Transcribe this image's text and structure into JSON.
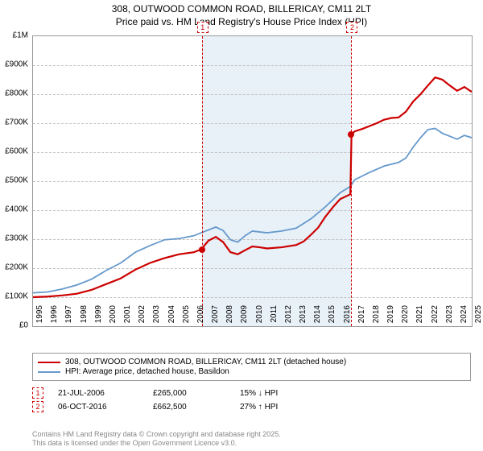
{
  "title_line1": "308, OUTWOOD COMMON ROAD, BILLERICAY, CM11 2LT",
  "title_line2": "Price paid vs. HM Land Registry's House Price Index (HPI)",
  "chart": {
    "type": "line",
    "background_color": "#ffffff",
    "shaded_color": "#e8f0f8",
    "grid_color": "#c0c0c0",
    "border_color": "#999999",
    "x_start_year": 1995,
    "x_end_year": 2025,
    "x_labels": [
      "1995",
      "1996",
      "1997",
      "1998",
      "1999",
      "2000",
      "2001",
      "2002",
      "2003",
      "2004",
      "2005",
      "2006",
      "2007",
      "2008",
      "2009",
      "2010",
      "2011",
      "2012",
      "2013",
      "2014",
      "2015",
      "2016",
      "2017",
      "2018",
      "2019",
      "2020",
      "2021",
      "2022",
      "2023",
      "2024",
      "2025"
    ],
    "y_min": 0,
    "y_max": 1000000,
    "y_labels": [
      "£0",
      "£100K",
      "£200K",
      "£300K",
      "£400K",
      "£500K",
      "£600K",
      "£700K",
      "£800K",
      "£900K",
      "£1M"
    ],
    "shaded_start_year": 2006.55,
    "shaded_end_year": 2016.77,
    "series": [
      {
        "name": "price_paid",
        "color": "#cc0000",
        "width": 2.2,
        "data": [
          [
            1995,
            100000
          ],
          [
            1996,
            102000
          ],
          [
            1997,
            106000
          ],
          [
            1998,
            112000
          ],
          [
            1999,
            125000
          ],
          [
            2000,
            145000
          ],
          [
            2001,
            165000
          ],
          [
            2002,
            195000
          ],
          [
            2003,
            218000
          ],
          [
            2004,
            235000
          ],
          [
            2005,
            248000
          ],
          [
            2006,
            255000
          ],
          [
            2006.5,
            265000
          ],
          [
            2007,
            295000
          ],
          [
            2007.5,
            308000
          ],
          [
            2008,
            290000
          ],
          [
            2008.5,
            255000
          ],
          [
            2009,
            248000
          ],
          [
            2009.5,
            262000
          ],
          [
            2010,
            275000
          ],
          [
            2010.5,
            272000
          ],
          [
            2011,
            268000
          ],
          [
            2012,
            272000
          ],
          [
            2013,
            280000
          ],
          [
            2013.5,
            292000
          ],
          [
            2014,
            315000
          ],
          [
            2014.5,
            340000
          ],
          [
            2015,
            378000
          ],
          [
            2015.5,
            410000
          ],
          [
            2016,
            438000
          ],
          [
            2016.7,
            455000
          ],
          [
            2016.78,
            662500
          ],
          [
            2017,
            672000
          ],
          [
            2017.5,
            680000
          ],
          [
            2018,
            690000
          ],
          [
            2018.5,
            700000
          ],
          [
            2019,
            712000
          ],
          [
            2019.5,
            718000
          ],
          [
            2020,
            720000
          ],
          [
            2020.5,
            740000
          ],
          [
            2021,
            775000
          ],
          [
            2021.5,
            800000
          ],
          [
            2022,
            830000
          ],
          [
            2022.5,
            858000
          ],
          [
            2023,
            850000
          ],
          [
            2023.5,
            830000
          ],
          [
            2024,
            812000
          ],
          [
            2024.5,
            825000
          ],
          [
            2025,
            808000
          ]
        ]
      },
      {
        "name": "hpi",
        "color": "#6699cc",
        "width": 1.8,
        "data": [
          [
            1995,
            115000
          ],
          [
            1996,
            118000
          ],
          [
            1997,
            128000
          ],
          [
            1998,
            142000
          ],
          [
            1999,
            162000
          ],
          [
            2000,
            192000
          ],
          [
            2001,
            218000
          ],
          [
            2002,
            255000
          ],
          [
            2003,
            278000
          ],
          [
            2004,
            298000
          ],
          [
            2005,
            302000
          ],
          [
            2006,
            312000
          ],
          [
            2007,
            332000
          ],
          [
            2007.5,
            342000
          ],
          [
            2008,
            330000
          ],
          [
            2008.5,
            298000
          ],
          [
            2009,
            290000
          ],
          [
            2009.5,
            312000
          ],
          [
            2010,
            328000
          ],
          [
            2011,
            322000
          ],
          [
            2012,
            328000
          ],
          [
            2013,
            338000
          ],
          [
            2014,
            370000
          ],
          [
            2015,
            412000
          ],
          [
            2016,
            460000
          ],
          [
            2016.7,
            482000
          ],
          [
            2017,
            505000
          ],
          [
            2018,
            530000
          ],
          [
            2019,
            552000
          ],
          [
            2020,
            565000
          ],
          [
            2020.5,
            580000
          ],
          [
            2021,
            618000
          ],
          [
            2021.5,
            650000
          ],
          [
            2022,
            678000
          ],
          [
            2022.5,
            682000
          ],
          [
            2023,
            665000
          ],
          [
            2024,
            645000
          ],
          [
            2024.5,
            658000
          ],
          [
            2025,
            650000
          ]
        ]
      }
    ],
    "sale_markers": [
      {
        "n": "1",
        "year": 2006.55,
        "price": 265000,
        "color": "#cc0000"
      },
      {
        "n": "2",
        "year": 2016.77,
        "price": 662500,
        "color": "#cc0000"
      }
    ]
  },
  "legend": {
    "series1": {
      "color": "#cc0000",
      "label": "308, OUTWOOD COMMON ROAD, BILLERICAY, CM11 2LT (detached house)"
    },
    "series2": {
      "color": "#6699cc",
      "label": "HPI: Average price, detached house, Basildon"
    }
  },
  "sales": [
    {
      "n": "1",
      "color": "#cc0000",
      "date": "21-JUL-2006",
      "price": "£265,000",
      "diff": "15% ↓ HPI"
    },
    {
      "n": "2",
      "color": "#cc0000",
      "date": "06-OCT-2016",
      "price": "£662,500",
      "diff": "27% ↑ HPI"
    }
  ],
  "footer_line1": "Contains HM Land Registry data © Crown copyright and database right 2025.",
  "footer_line2": "This data is licensed under the Open Government Licence v3.0."
}
